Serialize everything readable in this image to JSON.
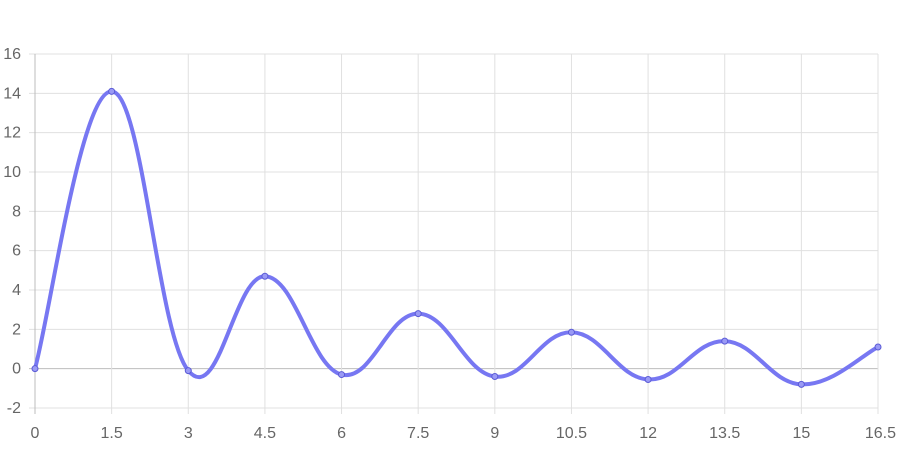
{
  "chart_data": {
    "type": "line",
    "title": "",
    "xlabel": "",
    "ylabel": "",
    "x": [
      0,
      1.5,
      3,
      4.5,
      6,
      7.5,
      9,
      10.5,
      12,
      13.5,
      15,
      16.5
    ],
    "x_ticks": [
      "0",
      "1.5",
      "3",
      "4.5",
      "6",
      "7.5",
      "9",
      "10.5",
      "12",
      "13.5",
      "15",
      "16.5"
    ],
    "y_ticks": [
      "-2",
      "0",
      "2",
      "4",
      "6",
      "8",
      "10",
      "12",
      "14",
      "16"
    ],
    "xlim": [
      0,
      16.5
    ],
    "ylim": [
      -2,
      16
    ],
    "grid": true,
    "legend": "none",
    "series": [
      {
        "color": "#7777f2",
        "point_color": "#5b5bd6",
        "values": [
          0.0,
          14.1,
          -0.1,
          4.7,
          -0.3,
          2.8,
          -0.4,
          1.85,
          -0.55,
          1.4,
          -0.8,
          1.1
        ]
      }
    ]
  }
}
